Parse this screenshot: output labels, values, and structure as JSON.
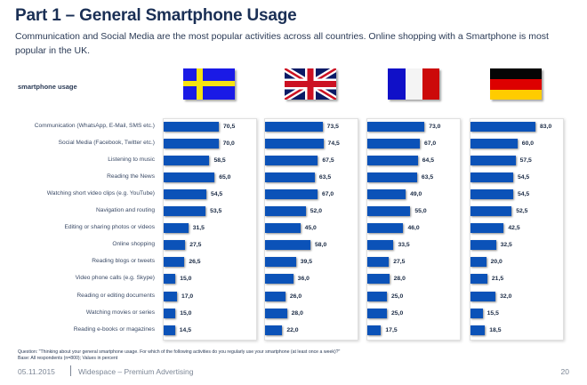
{
  "header": {
    "title": "Part 1 – General Smartphone Usage",
    "subtitle": "Communication and Social Media are the most popular activities across all countries. Online shopping with a Smartphone is most popular in the UK."
  },
  "chart_data": {
    "type": "bar",
    "orientation": "horizontal",
    "title": "Part 1 – General Smartphone Usage",
    "section_label": "smartphone usage",
    "unit": "percent",
    "xlim": [
      0,
      100
    ],
    "grid": false,
    "categories": [
      "Communication (WhatsApp, E-Mail, SMS etc.)",
      "Social Media (Facebook, Twitter etc.)",
      "Listening to music",
      "Reading the News",
      "Watching short video clips (e.g. YouTube)",
      "Navigation and routing",
      "Editing or sharing photos or videos",
      "Online shopping",
      "Reading blogs or tweets",
      "Video phone calls (e.g. Skype)",
      "Reading or editing documents",
      "Watching movies or series",
      "Reading e-books or magazines"
    ],
    "series": [
      {
        "name": "Sweden",
        "flag": "sweden-flag",
        "values": [
          70.5,
          70.0,
          58.5,
          65.0,
          54.5,
          53.5,
          31.5,
          27.5,
          26.5,
          15.0,
          17.0,
          15.0,
          14.5
        ],
        "labels": [
          "70,5",
          "70,0",
          "58,5",
          "65,0",
          "54,5",
          "53,5",
          "31,5",
          "27,5",
          "26,5",
          "15,0",
          "17,0",
          "15,0",
          "14,5"
        ]
      },
      {
        "name": "United Kingdom",
        "flag": "uk-flag",
        "values": [
          73.5,
          74.5,
          67.5,
          63.5,
          67.0,
          52.0,
          45.0,
          58.0,
          39.5,
          36.0,
          26.0,
          28.0,
          22.0
        ],
        "labels": [
          "73,5",
          "74,5",
          "67,5",
          "63,5",
          "67,0",
          "52,0",
          "45,0",
          "58,0",
          "39,5",
          "36,0",
          "26,0",
          "28,0",
          "22,0"
        ]
      },
      {
        "name": "France",
        "flag": "france-flag",
        "values": [
          73.0,
          67.0,
          64.5,
          63.5,
          49.0,
          55.0,
          46.0,
          33.5,
          27.5,
          28.0,
          25.0,
          25.0,
          17.5
        ],
        "labels": [
          "73,0",
          "67,0",
          "64,5",
          "63,5",
          "49,0",
          "55,0",
          "46,0",
          "33,5",
          "27,5",
          "28,0",
          "25,0",
          "25,0",
          "17,5"
        ]
      },
      {
        "name": "Germany",
        "flag": "germany-flag",
        "values": [
          83.0,
          60.0,
          57.5,
          54.5,
          54.5,
          52.5,
          42.5,
          32.5,
          20.0,
          21.5,
          32.0,
          15.5,
          18.5
        ],
        "labels": [
          "83,0",
          "60,0",
          "57,5",
          "54,5",
          "54,5",
          "52,5",
          "42,5",
          "32,5",
          "20,0",
          "21,5",
          "32,0",
          "15,5",
          "18,5"
        ]
      }
    ],
    "bar_color": "#0b52b8"
  },
  "notes": {
    "question": "Question: \"Thinking about your general smartphone usage. For which of the following activities do you regularly use your smartphone (at least once a week)?\"",
    "base": "Base: All respondents (n=800); Values in percent"
  },
  "footer": {
    "date": "05.11.2015",
    "company": "Widespace – Premium Advertising",
    "page_number": "20"
  }
}
